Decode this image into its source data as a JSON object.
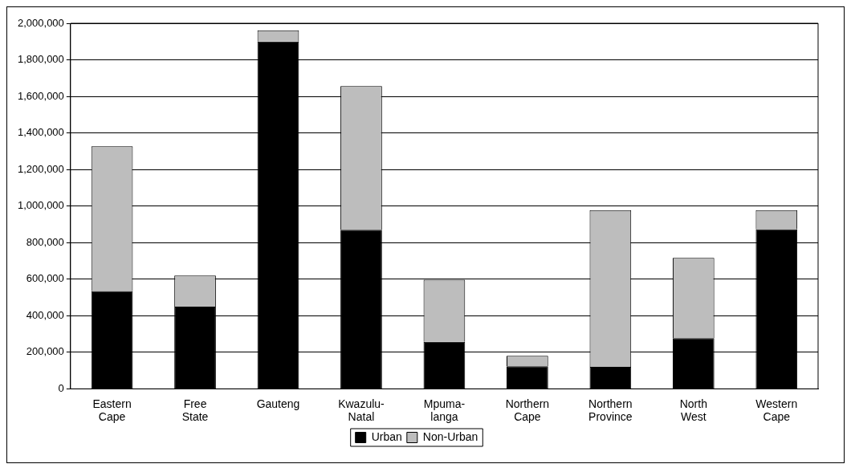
{
  "chart_data": {
    "type": "bar",
    "stacked": true,
    "categories": [
      "Eastern\nCape",
      "Free\nState",
      "Gauteng",
      "Kwazulu-\nNatal",
      "Mpuma-\nlanga",
      "Northern\nCape",
      "Northern\nProvince",
      "North\nWest",
      "Western\nCape"
    ],
    "series": [
      {
        "name": "Urban",
        "color": "#000000",
        "values": [
          535000,
          450000,
          1900000,
          870000,
          258000,
          124000,
          120000,
          277000,
          873000
        ]
      },
      {
        "name": "Non-Urban",
        "color": "#bdbdbd",
        "values": [
          792000,
          170000,
          62000,
          786000,
          339000,
          57000,
          858000,
          439000,
          105000
        ]
      }
    ],
    "ylim": [
      0,
      2000000
    ],
    "yticks": [
      {
        "value": 0,
        "label": "0"
      },
      {
        "value": 200000,
        "label": "200,000"
      },
      {
        "value": 400000,
        "label": "400,000"
      },
      {
        "value": 600000,
        "label": "600,000"
      },
      {
        "value": 800000,
        "label": "800,000"
      },
      {
        "value": 1000000,
        "label": "1,000,000"
      },
      {
        "value": 1200000,
        "label": "1,200,000"
      },
      {
        "value": 1400000,
        "label": "1,400,000"
      },
      {
        "value": 1600000,
        "label": "1,600,000"
      },
      {
        "value": 1800000,
        "label": "1,800,000"
      },
      {
        "value": 2000000,
        "label": "2,000,000"
      }
    ],
    "grid": "y",
    "legend": "bottom"
  }
}
